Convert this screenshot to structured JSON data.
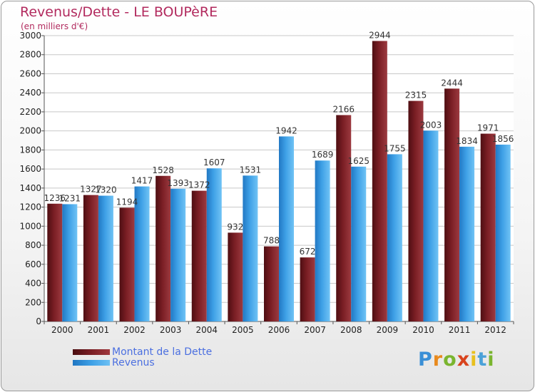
{
  "title": "Revenus/Dette - LE BOUPèRE",
  "subtitle": "(en milliers d'€)",
  "legend": {
    "debt_label": "Montant de la Dette",
    "revenue_label": "Revenus"
  },
  "logo": {
    "text": "Proxiti",
    "letter_colors": [
      "#3a8fd6",
      "#e88a1e",
      "#7ab52f",
      "#d8431d",
      "#e8c01e",
      "#4aa1d8",
      "#7ab52f"
    ]
  },
  "colors": {
    "debt": "#7a1e24",
    "revenue": "#3ea0e6",
    "title": "#b22a5e",
    "legend_text": "#4b6fe0"
  },
  "chart_data": {
    "type": "bar",
    "categories": [
      "2000",
      "2001",
      "2002",
      "2003",
      "2004",
      "2005",
      "2006",
      "2007",
      "2008",
      "2009",
      "2010",
      "2011",
      "2012"
    ],
    "series": [
      {
        "name": "Montant de la Dette",
        "values": [
          1236,
          1327,
          1194,
          1528,
          1372,
          932,
          788,
          672,
          2166,
          2944,
          2315,
          2444,
          1971
        ]
      },
      {
        "name": "Revenus",
        "values": [
          1231,
          1320,
          1417,
          1393,
          1607,
          1531,
          1942,
          1689,
          1625,
          1755,
          2003,
          1834,
          1856
        ]
      }
    ],
    "ylim": [
      0,
      3000
    ],
    "yticks": [
      0,
      200,
      400,
      600,
      800,
      1000,
      1200,
      1400,
      1600,
      1800,
      2000,
      2200,
      2400,
      2600,
      2800,
      3000
    ],
    "grid": true,
    "legend_position": "bottom-left"
  }
}
